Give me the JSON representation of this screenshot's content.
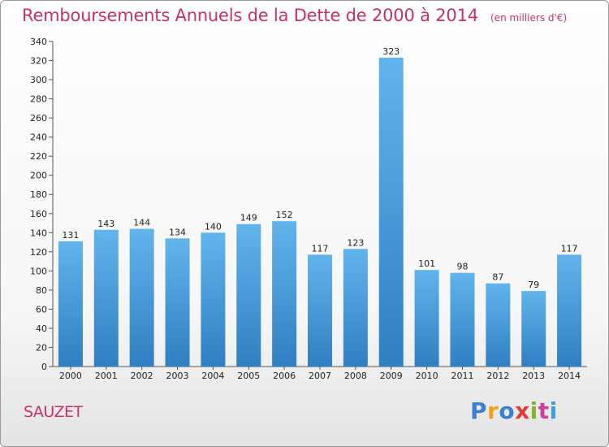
{
  "title": "Remboursements Annuels de la Dette de 2000 à 2014",
  "subtitle": "(en milliers d'€)",
  "commune": "SAUZET",
  "brand": {
    "name": "Proxiti",
    "colors": [
      "#3a7fd0",
      "#f0a020",
      "#3a7fd0",
      "#e03a3a",
      "#7ab830",
      "#d040a0",
      "#3aa0e0"
    ]
  },
  "chart_data": {
    "type": "bar",
    "title": "Remboursements Annuels de la Dette de 2000 à 2014",
    "subtitle": "(en milliers d'€)",
    "categories": [
      "2000",
      "2001",
      "2002",
      "2003",
      "2004",
      "2005",
      "2006",
      "2007",
      "2008",
      "2009",
      "2010",
      "2011",
      "2012",
      "2013",
      "2014"
    ],
    "values": [
      131,
      143,
      144,
      134,
      140,
      149,
      152,
      117,
      123,
      323,
      101,
      98,
      87,
      79,
      117
    ],
    "ylim": [
      0,
      340
    ],
    "yticks": [
      0,
      20,
      40,
      60,
      80,
      100,
      120,
      140,
      160,
      180,
      200,
      220,
      240,
      260,
      280,
      300,
      320,
      340
    ],
    "grid": false,
    "legend": "none",
    "bar_color_top": "#62b4ec",
    "bar_color_bottom": "#2f7fc2"
  }
}
